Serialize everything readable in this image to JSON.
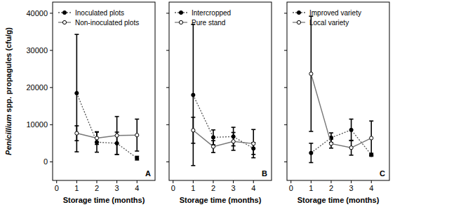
{
  "chart_data": [
    {
      "type": "line",
      "ylabel": "Penicillium spp. propagules (cfu/g)",
      "xlabel": "Storage time (months)",
      "annotation": "A",
      "x": [
        1,
        2,
        3,
        4
      ],
      "xlim": [
        -0.2,
        4.9
      ],
      "xticks": [
        0,
        1,
        2,
        3,
        4
      ],
      "ylim": [
        -5000,
        43000
      ],
      "yticks": [
        0,
        10000,
        20000,
        30000,
        40000
      ],
      "legend": "top-left",
      "tick_labels": true,
      "series": [
        {
          "name": "Inoculated plots",
          "color": "#000000",
          "line_style": "dotted",
          "marker": "circle",
          "values": [
            18500,
            5300,
            5000,
            1000
          ],
          "errors": [
            15800,
            2700,
            3000,
            500
          ]
        },
        {
          "name": "Non-inoculated plots",
          "color": "#000000",
          "line_style": "solid",
          "marker": "open-circle",
          "values": [
            7700,
            6400,
            7100,
            7200
          ],
          "errors": [
            2000,
            1700,
            5100,
            4300
          ]
        }
      ]
    },
    {
      "type": "line",
      "xlabel": "Storage time (months)",
      "annotation": "B",
      "x": [
        1,
        2,
        3,
        4
      ],
      "xlim": [
        -0.2,
        4.9
      ],
      "xticks": [
        0,
        1,
        2,
        3,
        4
      ],
      "ylim": [
        -5000,
        43000
      ],
      "yticks": [
        0,
        10000,
        20000,
        30000,
        40000
      ],
      "legend": "top-left",
      "tick_labels": "x",
      "series": [
        {
          "name": "Intercropped",
          "color": "#000000",
          "line_style": "dotted",
          "marker": "circle",
          "values": [
            18000,
            6600,
            6800,
            3600
          ],
          "errors": [
            19000,
            2000,
            2500,
            1600
          ]
        },
        {
          "name": "Pure stand",
          "color": "#000000",
          "line_style": "solid",
          "marker": "open-circle",
          "values": [
            8500,
            4100,
            5500,
            4900
          ],
          "errors": [
            3500,
            1600,
            2400,
            3800
          ]
        }
      ]
    },
    {
      "type": "line",
      "xlabel": "Storage time (months)",
      "annotation": "C",
      "x": [
        1,
        2,
        3,
        4
      ],
      "xlim": [
        -0.2,
        4.9
      ],
      "xticks": [
        0,
        1,
        2,
        3,
        4
      ],
      "ylim": [
        -5000,
        43000
      ],
      "yticks": [
        0,
        10000,
        20000,
        30000,
        40000
      ],
      "legend": "top-left",
      "tick_labels": "x",
      "series": [
        {
          "name": "Improved variety",
          "color": "#000000",
          "line_style": "dotted",
          "marker": "circle",
          "values": [
            2400,
            6500,
            8600,
            1900
          ],
          "errors": [
            2600,
            1300,
            2900,
            400
          ]
        },
        {
          "name": "Local variety",
          "color": "#000000",
          "line_style": "solid",
          "marker": "open-circle",
          "values": [
            23700,
            4900,
            3800,
            6400
          ],
          "errors": [
            15500,
            1200,
            2000,
            4600
          ]
        }
      ]
    }
  ]
}
